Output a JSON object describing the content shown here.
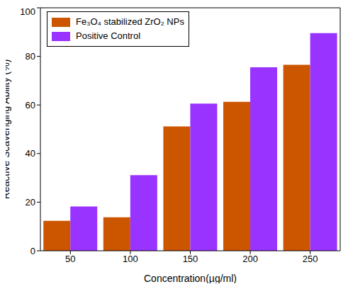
{
  "chart_data": {
    "type": "bar",
    "x_label": "Concentration(µg/ml)",
    "y_label": "Reactive Scavenging Ability (%)",
    "categories": [
      50,
      100,
      150,
      200,
      250
    ],
    "series": [
      {
        "name": "Fe₃O₄ stabilized ZrO₂ NPs",
        "color": "#cc5500",
        "values": [
          12.3,
          13.8,
          51.2,
          61.3,
          76.5
        ]
      },
      {
        "name": "Positive Control",
        "color": "#9933ff",
        "values": [
          18.2,
          31.1,
          60.6,
          75.5,
          89.6
        ]
      }
    ],
    "ylim": [
      0,
      100
    ],
    "yticks": [
      0,
      20,
      40,
      60,
      80,
      100
    ],
    "legend": "upper left",
    "grid": false
  }
}
